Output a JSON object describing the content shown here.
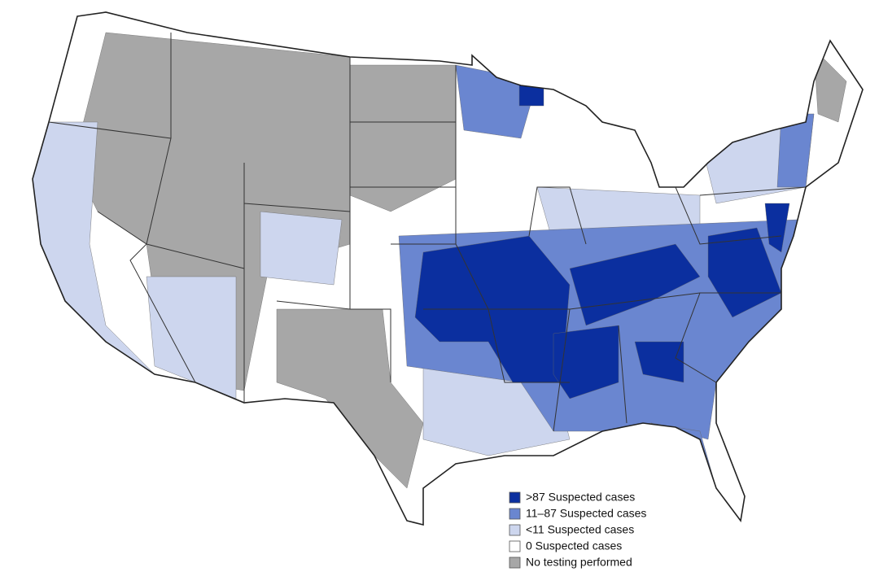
{
  "legend": {
    "items": [
      {
        "label": ">87 Suspected cases",
        "color": "#0b2f9f"
      },
      {
        "label": "11–87 Suspected cases",
        "color": "#6a86d0"
      },
      {
        "label": "<11 Suspected cases",
        "color": "#cdd6ee"
      },
      {
        "label": "0 Suspected cases",
        "color": "#ffffff"
      },
      {
        "label": "No testing performed",
        "color": "#a7a7a7"
      }
    ]
  }
}
